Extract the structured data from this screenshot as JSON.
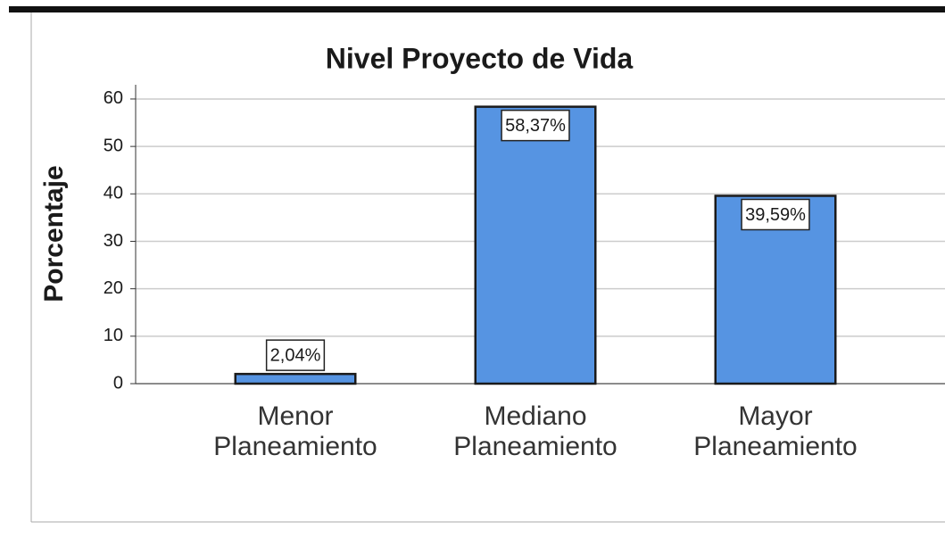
{
  "chart_data": {
    "type": "bar",
    "title": "Nivel Proyecto de Vida",
    "y_label": "Porcentaje",
    "categories": [
      "Menor Planeamiento",
      "Mediano Planeamiento",
      "Mayor Planeamiento"
    ],
    "values": [
      2.04,
      58.37,
      39.59
    ],
    "value_labels": [
      "2,04%",
      "58,37%",
      "39,59%"
    ],
    "color": "#5694e2",
    "ylim": [
      0,
      63
    ],
    "yticks": [
      0,
      10,
      20,
      30,
      40,
      50,
      60
    ],
    "grid": true
  }
}
